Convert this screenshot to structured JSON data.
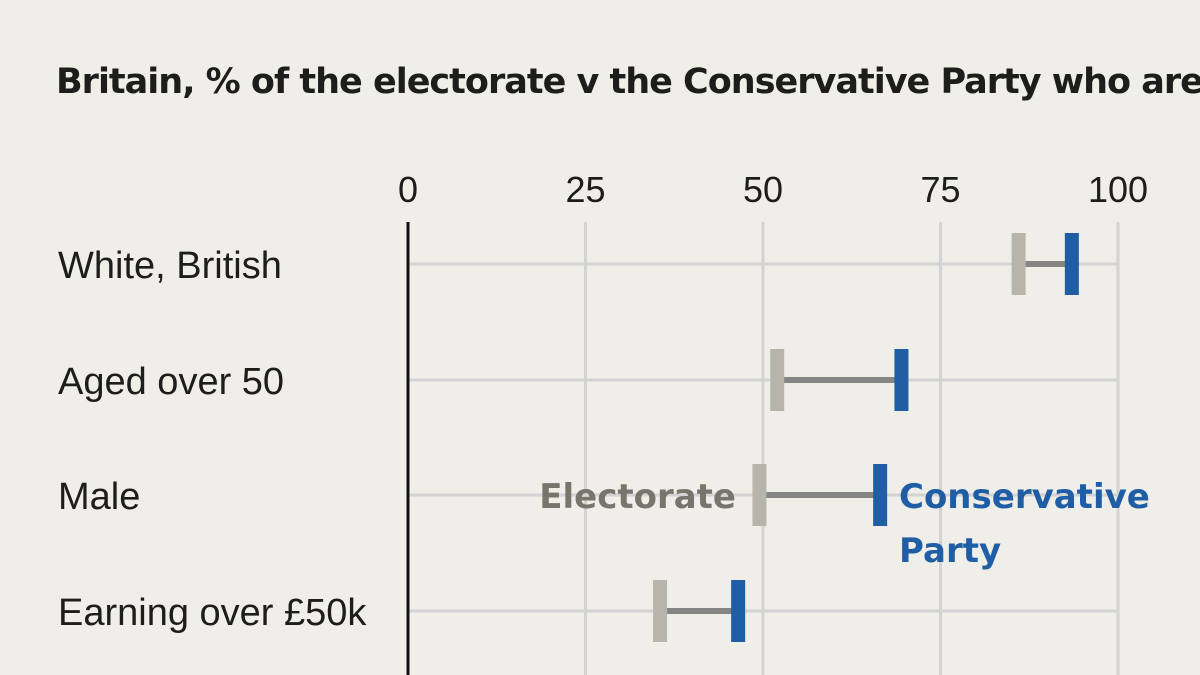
{
  "title": "Britain, % of the electorate v the Conservative Party who are",
  "colors": {
    "background": "#f0eee9",
    "electorate": "#b7b5ab",
    "conservative": "#1f5da5",
    "connector": "#858585",
    "grid": "#d3d3d3",
    "zero_line": "#111111",
    "electorate_label": "#76766c",
    "conservative_label": "#1f5da5"
  },
  "chart_data": {
    "type": "dumbbell",
    "title": "Britain, % of the electorate v the Conservative Party who are",
    "xlim": [
      0,
      100
    ],
    "x_ticks": [
      0,
      25,
      50,
      75,
      100
    ],
    "x_tick_labels": [
      "0",
      "25",
      "50",
      "75",
      "100"
    ],
    "categories": [
      "White, British",
      "Aged over 50",
      "Male",
      "Earning over £50k"
    ],
    "series": [
      {
        "name": "Electorate",
        "values": [
          86,
          52,
          49.5,
          35.5
        ]
      },
      {
        "name": "Conservative Party",
        "values": [
          93.5,
          69.5,
          66.5,
          46.5
        ]
      }
    ],
    "legend": {
      "electorate": "Electorate",
      "conservative_line1": "Conservative",
      "conservative_line2": "Party",
      "placement": "inline on Male row"
    },
    "grid": true
  }
}
